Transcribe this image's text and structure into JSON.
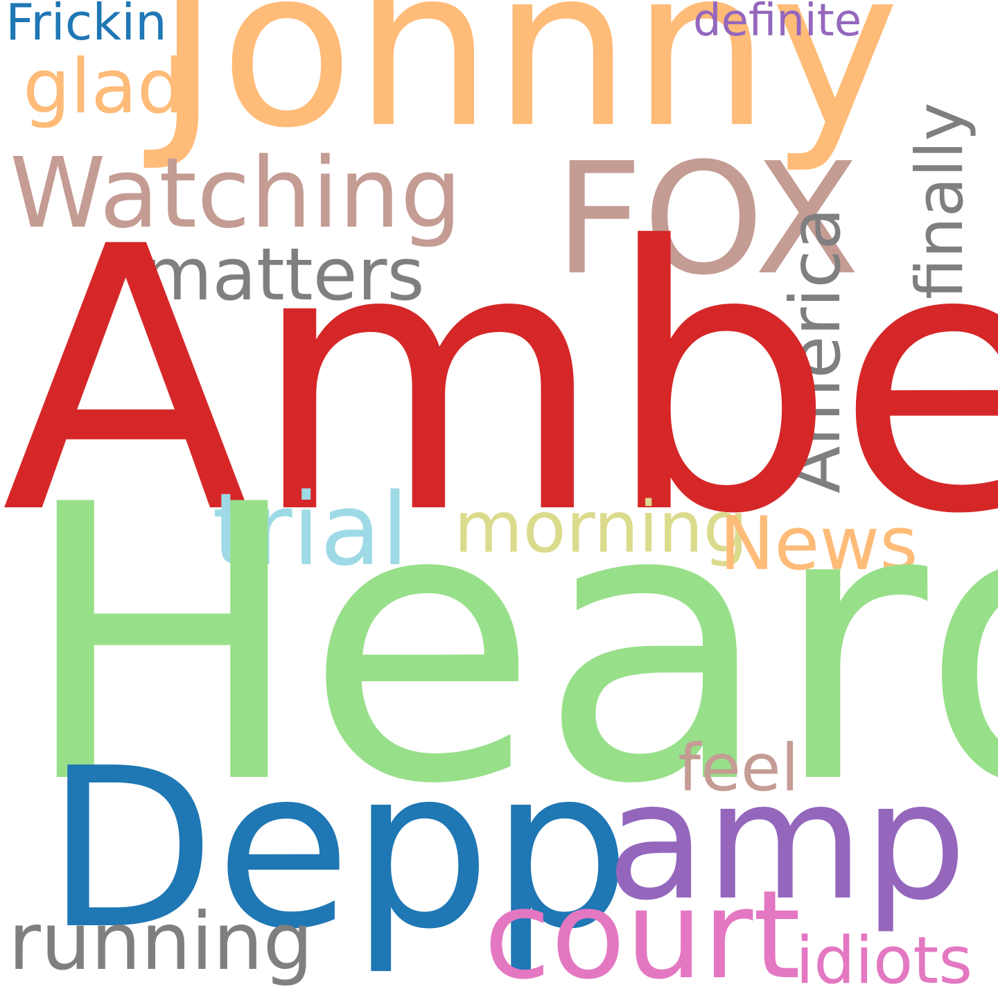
{
  "words": {
    "frickin": {
      "text": "Frickin",
      "color": "#1f77b4"
    },
    "johnny": {
      "text": "Johnny",
      "color": "#ffbb78"
    },
    "definite": {
      "text": "definite",
      "color": "#9467bd"
    },
    "glad": {
      "text": "glad",
      "color": "#ffbb78"
    },
    "watching": {
      "text": "Watching",
      "color": "#c49c94"
    },
    "fox": {
      "text": "FOX",
      "color": "#c49c94"
    },
    "finally": {
      "text": "finally",
      "color": "#7f7f7f"
    },
    "matters": {
      "text": "matters",
      "color": "#7f7f7f"
    },
    "america": {
      "text": "America",
      "color": "#7f7f7f"
    },
    "amber": {
      "text": "Amber",
      "color": "#d62728"
    },
    "trial": {
      "text": "trial",
      "color": "#9edae5"
    },
    "morning": {
      "text": "morning",
      "color": "#dbdb8d"
    },
    "news": {
      "text": "News",
      "color": "#ffbb78"
    },
    "heard": {
      "text": "Heard",
      "color": "#98df8a"
    },
    "feel": {
      "text": "feel",
      "color": "#c49c94"
    },
    "depp": {
      "text": "Depp",
      "color": "#1f77b4"
    },
    "amp": {
      "text": "amp",
      "color": "#9467bd"
    },
    "court": {
      "text": "court",
      "color": "#e377c2"
    },
    "running": {
      "text": "running",
      "color": "#7f7f7f"
    },
    "idiots": {
      "text": "idiots",
      "color": "#e377c2"
    }
  }
}
